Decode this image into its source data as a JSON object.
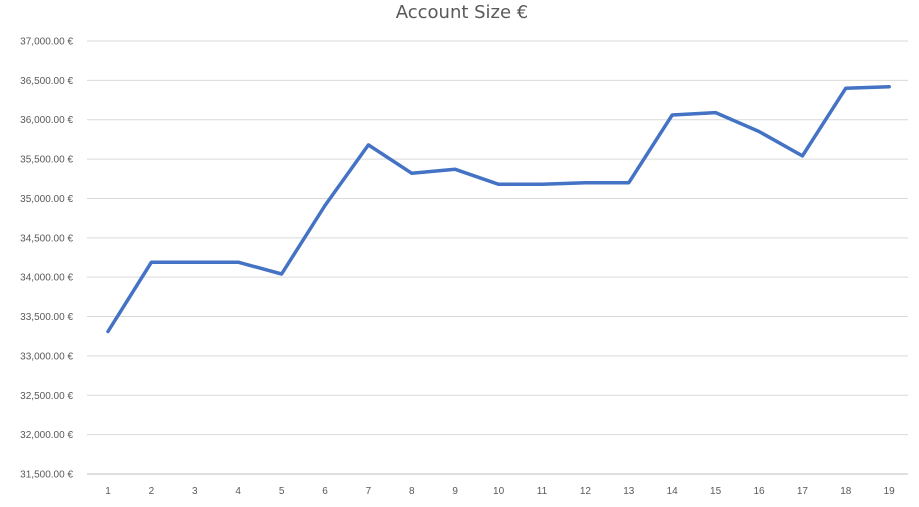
{
  "chart_data": {
    "type": "line",
    "title": "Account Size €",
    "xlabel": "",
    "ylabel": "",
    "x": [
      1,
      2,
      3,
      4,
      5,
      6,
      7,
      8,
      9,
      10,
      11,
      12,
      13,
      14,
      15,
      16,
      17,
      18,
      19
    ],
    "x_tick_labels": [
      "1",
      "2",
      "3",
      "4",
      "5",
      "6",
      "7",
      "8",
      "9",
      "10",
      "11",
      "12",
      "13",
      "14",
      "15",
      "16",
      "17",
      "18",
      "19"
    ],
    "series": [
      {
        "values": [
          33310,
          34190,
          34190,
          34190,
          34040,
          34910,
          35680,
          35320,
          35370,
          35180,
          35180,
          35200,
          35200,
          36060,
          36090,
          35850,
          35540,
          36400,
          36420
        ],
        "color": "#4472c4"
      }
    ],
    "ylim": [
      31500,
      37000
    ],
    "y_ticks": [
      31500,
      32000,
      32500,
      33000,
      33500,
      34000,
      34500,
      35000,
      35500,
      36000,
      36500,
      37000
    ],
    "y_tick_labels": [
      "31,500.00 €",
      "32,000.00 €",
      "32,500.00 €",
      "33,000.00 €",
      "33,500.00 €",
      "34,000.00 €",
      "34,500.00 €",
      "35,000.00 €",
      "35,500.00 €",
      "36,000.00 €",
      "36,500.00 €",
      "37,000.00 €"
    ],
    "grid": true,
    "legend": "none"
  }
}
